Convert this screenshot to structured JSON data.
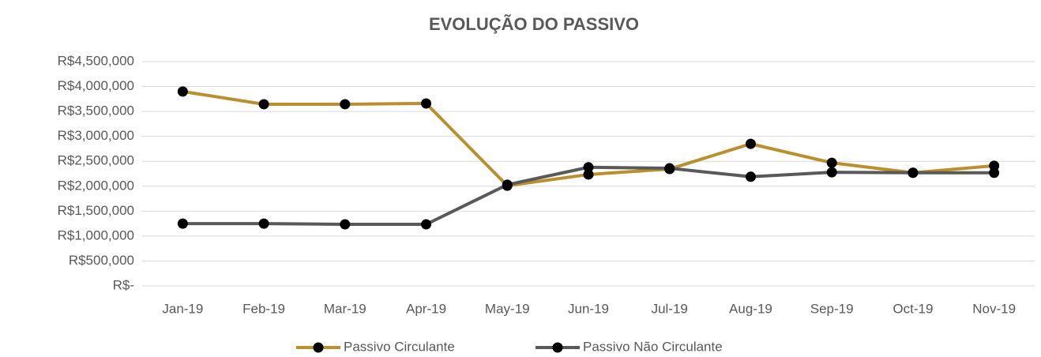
{
  "chart_data": {
    "type": "line",
    "title": "EVOLUÇÃO DO PASSIVO",
    "categories": [
      "Jan-19",
      "Feb-19",
      "Mar-19",
      "Apr-19",
      "May-19",
      "Jun-19",
      "Jul-19",
      "Aug-19",
      "Sep-19",
      "Oct-19",
      "Nov-19"
    ],
    "series": [
      {
        "name": "Passivo Circulante",
        "color": "#b8902e",
        "values": [
          3900000,
          3645000,
          3645000,
          3660000,
          2010000,
          2235000,
          2345000,
          2850000,
          2470000,
          2270000,
          2410000
        ]
      },
      {
        "name": "Passivo Não Circulante",
        "color": "#595959",
        "values": [
          1250000,
          1250000,
          1235000,
          1235000,
          2030000,
          2380000,
          2360000,
          2190000,
          2280000,
          2270000,
          2270000
        ]
      }
    ],
    "ylim": [
      0,
      4500000
    ],
    "yticks": [
      {
        "value": 0,
        "label": "R$-"
      },
      {
        "value": 500000,
        "label": "R$500,000"
      },
      {
        "value": 1000000,
        "label": "R$1,000,000"
      },
      {
        "value": 1500000,
        "label": "R$1,500,000"
      },
      {
        "value": 2000000,
        "label": "R$2,000,000"
      },
      {
        "value": 2500000,
        "label": "R$2,500,000"
      },
      {
        "value": 3000000,
        "label": "R$3,000,000"
      },
      {
        "value": 3500000,
        "label": "R$3,500,000"
      },
      {
        "value": 4000000,
        "label": "R$4,000,000"
      },
      {
        "value": 4500000,
        "label": "R$4,500,000"
      }
    ],
    "grid": true,
    "legend": "bottom"
  }
}
